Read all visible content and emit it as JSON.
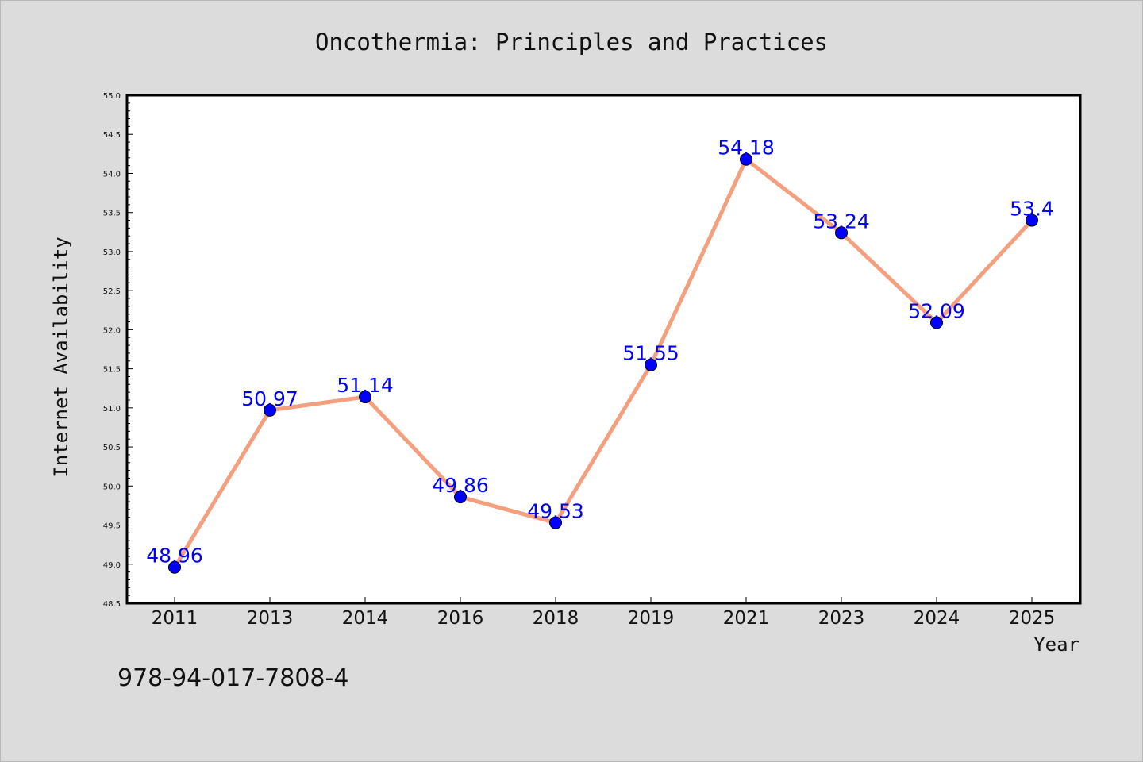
{
  "footer": {
    "isbn": "978-94-017-7808-4"
  },
  "colors": {
    "background": "#dcdcdc",
    "plot_background": "#ffffff",
    "line": "#f4a07f",
    "marker": "#0000ff",
    "data_label": "#0000ff"
  },
  "chart_data": {
    "type": "line",
    "title": "Oncothermia: Principles and Practices",
    "xlabel": "Year",
    "ylabel": "Internet Availability",
    "categories": [
      "2011",
      "2013",
      "2014",
      "2016",
      "2018",
      "2019",
      "2021",
      "2023",
      "2024",
      "2025"
    ],
    "series": [
      {
        "values": [
          48.96,
          50.97,
          51.14,
          49.86,
          49.53,
          51.55,
          54.18,
          53.24,
          52.09,
          53.4
        ],
        "labels": [
          "48.96",
          "50.97",
          "51.14",
          "49.86",
          "49.53",
          "51.55",
          "54.18",
          "53.24",
          "52.09",
          "53.4"
        ]
      }
    ],
    "ylim": [
      48.5,
      55.0
    ],
    "yticks": [
      "48.5",
      "49.0",
      "49.5",
      "50.0",
      "50.5",
      "51.0",
      "51.5",
      "52.0",
      "52.5",
      "53.0",
      "53.5",
      "54.0",
      "54.5",
      "55.0"
    ],
    "grid": false,
    "marker": "circle"
  }
}
